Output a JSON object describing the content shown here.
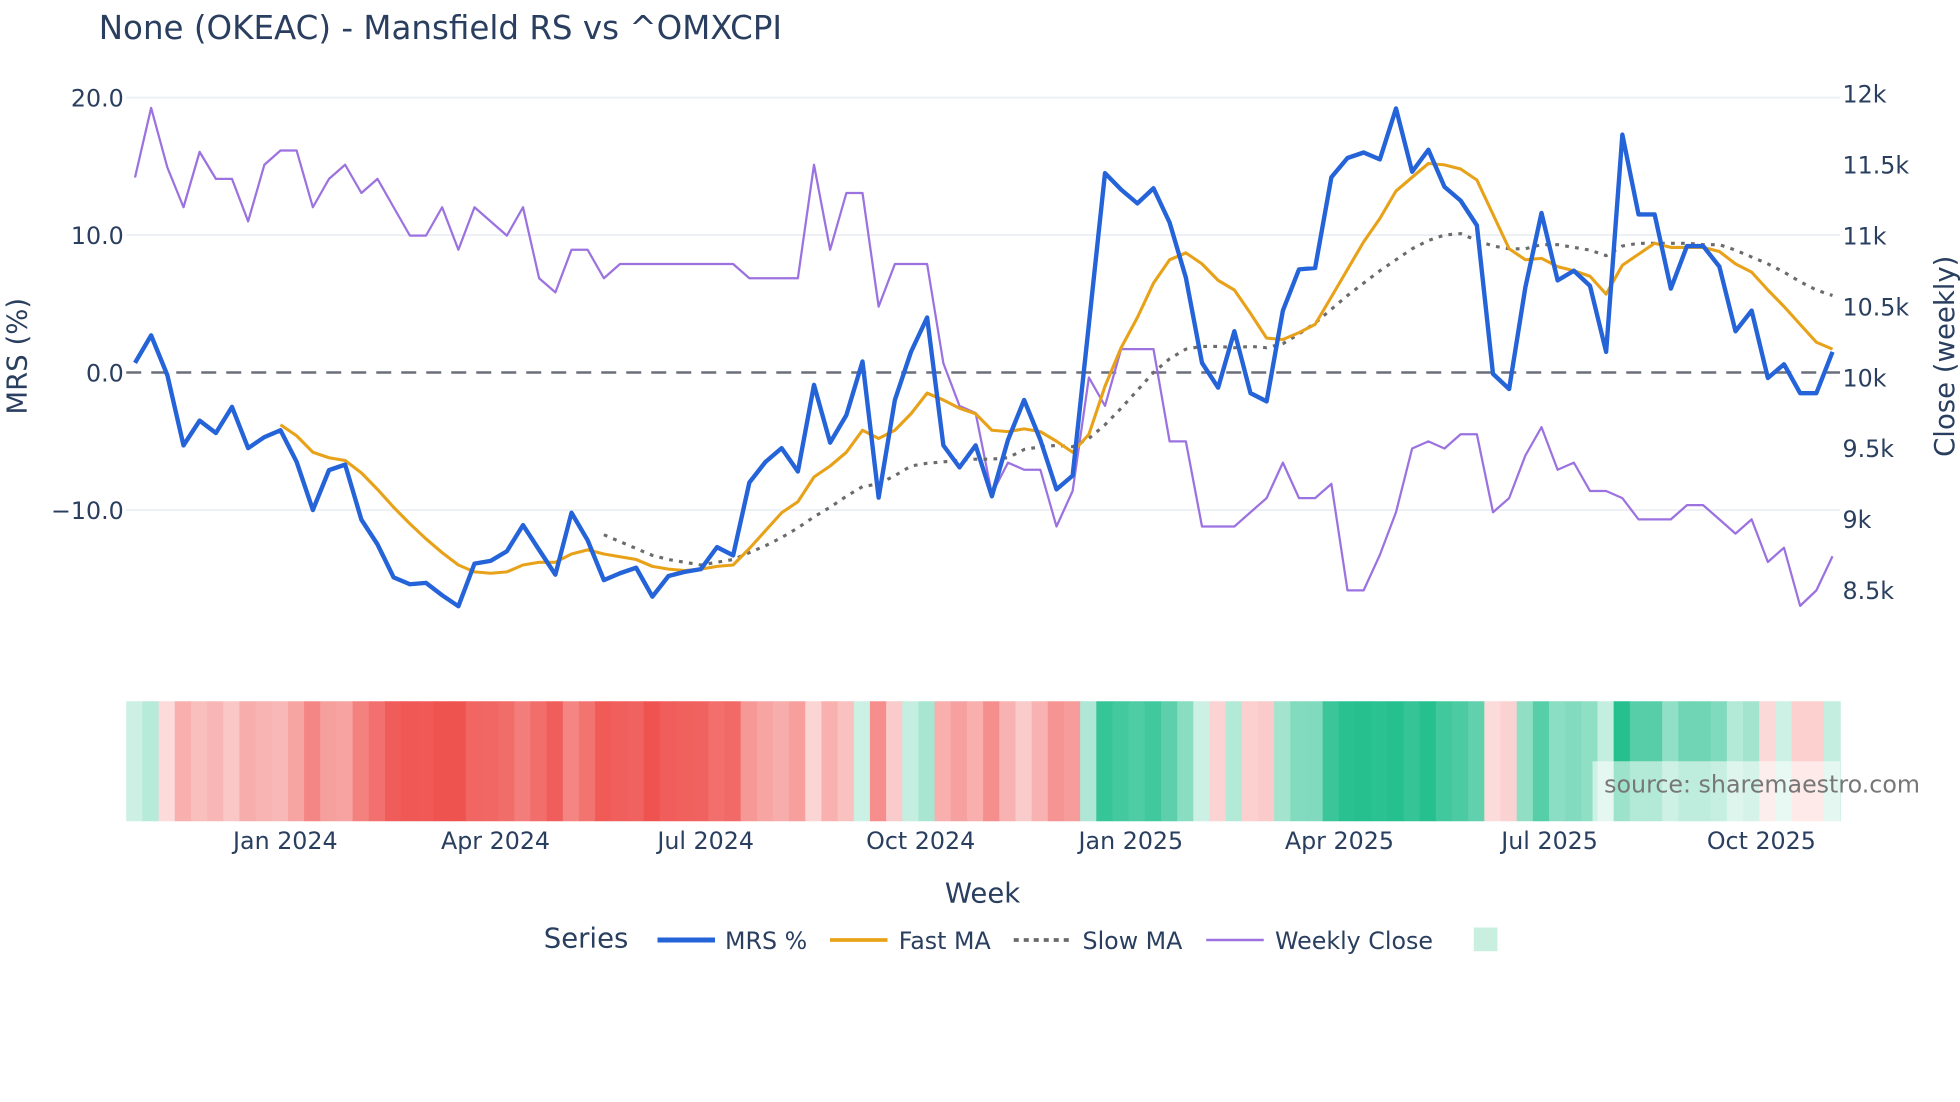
{
  "chart_data": {
    "type": "line",
    "title": "None (OKEAC) - Mansfield RS vs ^OMXCPI",
    "xlabel": "Week",
    "ylabel": "MRS (%)",
    "y2label": "Close (weekly)",
    "x_frequency": "weekly",
    "x_ticks": [
      "Jan 2024",
      "Apr 2024",
      "Jul 2024",
      "Oct 2024",
      "Jan 2025",
      "Apr 2025",
      "Jul 2025",
      "Oct 2025"
    ],
    "x_tick_week_index": [
      9.3,
      22.3,
      35.3,
      48.6,
      61.6,
      74.5,
      87.5,
      100.6
    ],
    "y_ticks": [
      "20.0",
      "10.0",
      "0.0",
      "−10.0"
    ],
    "y_tick_values": [
      20,
      10,
      0,
      -10
    ],
    "y2_ticks": [
      "12k",
      "11.5k",
      "11k",
      "10.5k",
      "10k",
      "9.5k",
      "9k",
      "8.5k"
    ],
    "y2_tick_values": [
      12000,
      11500,
      11000,
      10500,
      10000,
      9500,
      9000,
      8500
    ],
    "ylim": [
      -17.5,
      20.5
    ],
    "y2lim": [
      8300,
      12000
    ],
    "zero_line": 0,
    "legend_title": "Series",
    "legend_position": "bottom",
    "watermark": "source: sharemaestro.com",
    "colors": {
      "mrs": "#2563d9",
      "fast": "#e8a21a",
      "slow": "#6b6b6b",
      "close": "#9b72e0",
      "pos": "#26c08e",
      "neg": "#ef5350"
    },
    "series": [
      {
        "name": "MRS %",
        "key": "mrs",
        "start": 0,
        "values": [
          0.7,
          2.7,
          -0.2,
          -5.3,
          -3.5,
          -4.4,
          -2.5,
          -5.5,
          -4.7,
          -4.2,
          -6.5,
          -10,
          -7.1,
          -6.7,
          -10.7,
          -12.5,
          -14.9,
          -15.4,
          -15.3,
          -16.2,
          -17,
          -13.9,
          -13.7,
          -13,
          -11.1,
          -12.9,
          -14.7,
          -10.2,
          -12.2,
          -15.1,
          -14.6,
          -14.2,
          -16.3,
          -14.8,
          -14.5,
          -14.3,
          -12.7,
          -13.3,
          -8,
          -6.5,
          -5.5,
          -7.2,
          -0.9,
          -5.1,
          -3.1,
          0.8,
          -9.1,
          -2,
          1.5,
          4,
          -5.3,
          -6.9,
          -5.3,
          -9,
          -4.9,
          -2,
          -4.9,
          -8.5,
          -7.5,
          3.5,
          14.5,
          13.3,
          12.3,
          13.4,
          10.9,
          6.9,
          0.7,
          -1.1,
          3,
          -1.5,
          -2.1,
          4.5,
          7.5,
          7.6,
          14.2,
          15.6,
          16,
          15.5,
          19.2,
          14.6,
          16.2,
          13.5,
          12.5,
          10.7,
          -0.1,
          -1.2,
          6.2,
          11.6,
          6.7,
          7.4,
          6.3,
          1.5,
          17.3,
          11.5,
          11.5,
          6.1,
          9.2,
          9.2,
          7.7,
          3,
          4.5,
          -0.4,
          0.6,
          -1.5,
          -1.5,
          1.5
        ]
      },
      {
        "name": "Fast MA",
        "key": "fast",
        "start": 9,
        "values": [
          -3.8,
          -4.6,
          -5.8,
          -6.2,
          -6.4,
          -7.3,
          -8.5,
          -9.8,
          -11,
          -12.1,
          -13.1,
          -14,
          -14.5,
          -14.6,
          -14.5,
          -14,
          -13.8,
          -13.8,
          -13.2,
          -12.9,
          -13.2,
          -13.4,
          -13.6,
          -14.1,
          -14.3,
          -14.4,
          -14.3,
          -14.1,
          -14,
          -12.8,
          -11.5,
          -10.2,
          -9.4,
          -7.6,
          -6.8,
          -5.8,
          -4.2,
          -4.8,
          -4.2,
          -3,
          -1.5,
          -2,
          -2.6,
          -3,
          -4.2,
          -4.3,
          -4.1,
          -4.3,
          -5,
          -5.8,
          -4.5,
          -1,
          1.8,
          4,
          6.5,
          8.2,
          8.7,
          7.9,
          6.7,
          6,
          4.3,
          2.5,
          2.4,
          2.9,
          3.5,
          5.5,
          7.5,
          9.5,
          11.2,
          13.2,
          14.2,
          15.2,
          15.1,
          14.8,
          14,
          11.5,
          9,
          8.2,
          8.3,
          7.7,
          7.4,
          7,
          5.7,
          7.8,
          8.6,
          9.4,
          9.1,
          9.1,
          9.1,
          8.8,
          7.9,
          7.3,
          6,
          4.8,
          3.5,
          2.2,
          1.7
        ]
      },
      {
        "name": "Slow MA",
        "key": "slow",
        "start": 29,
        "values": [
          -11.8,
          -12.3,
          -12.8,
          -13.3,
          -13.6,
          -13.8,
          -14,
          -13.8,
          -13.6,
          -13.1,
          -12.6,
          -12,
          -11.3,
          -10.5,
          -9.8,
          -9,
          -8.3,
          -8.1,
          -7.5,
          -6.8,
          -6.6,
          -6.5,
          -6.4,
          -6.3,
          -6.3,
          -6.2,
          -5.6,
          -5.4,
          -5.3,
          -5.4,
          -4.8,
          -3.8,
          -2.6,
          -1.3,
          0,
          1,
          1.7,
          1.9,
          1.9,
          1.8,
          1.9,
          1.8,
          2.1,
          2.8,
          3.6,
          4.6,
          5.6,
          6.5,
          7.4,
          8.2,
          9,
          9.6,
          10,
          10.1,
          9.6,
          9.2,
          9,
          9,
          9.3,
          9.3,
          9.1,
          8.9,
          8.5,
          9.2,
          9.4,
          9.4,
          9.4,
          9.4,
          9.3,
          9.3,
          8.9,
          8.4,
          7.9,
          7.3,
          6.6,
          6,
          5.6
        ]
      },
      {
        "name": "Weekly Close",
        "key": "close",
        "axis": "y2",
        "start": 0,
        "values": [
          11410,
          11900,
          11480,
          11200,
          11590,
          11400,
          11400,
          11100,
          11500,
          11600,
          11600,
          11200,
          11400,
          11500,
          11300,
          11400,
          11200,
          11000,
          11000,
          11200,
          10900,
          11200,
          11100,
          11000,
          11200,
          10700,
          10600,
          10900,
          10900,
          10700,
          10800,
          10800,
          10800,
          10800,
          10800,
          10800,
          10800,
          10800,
          10700,
          10700,
          10700,
          10700,
          11500,
          10900,
          11300,
          11300,
          10500,
          10800,
          10800,
          10800,
          10100,
          9800,
          9750,
          9180,
          9400,
          9350,
          9350,
          8950,
          9200,
          10000,
          9800,
          10200,
          10200,
          10200,
          9550,
          9550,
          8950,
          8950,
          8950,
          9050,
          9150,
          9400,
          9150,
          9150,
          9250,
          8500,
          8500,
          8750,
          9050,
          9500,
          9550,
          9500,
          9600,
          9600,
          9050,
          9150,
          9450,
          9650,
          9350,
          9400,
          9200,
          9200,
          9150,
          9000,
          9000,
          9000,
          9100,
          9100,
          9000,
          8900,
          9000,
          8700,
          8800,
          8390,
          8500,
          8740
        ]
      }
    ]
  }
}
